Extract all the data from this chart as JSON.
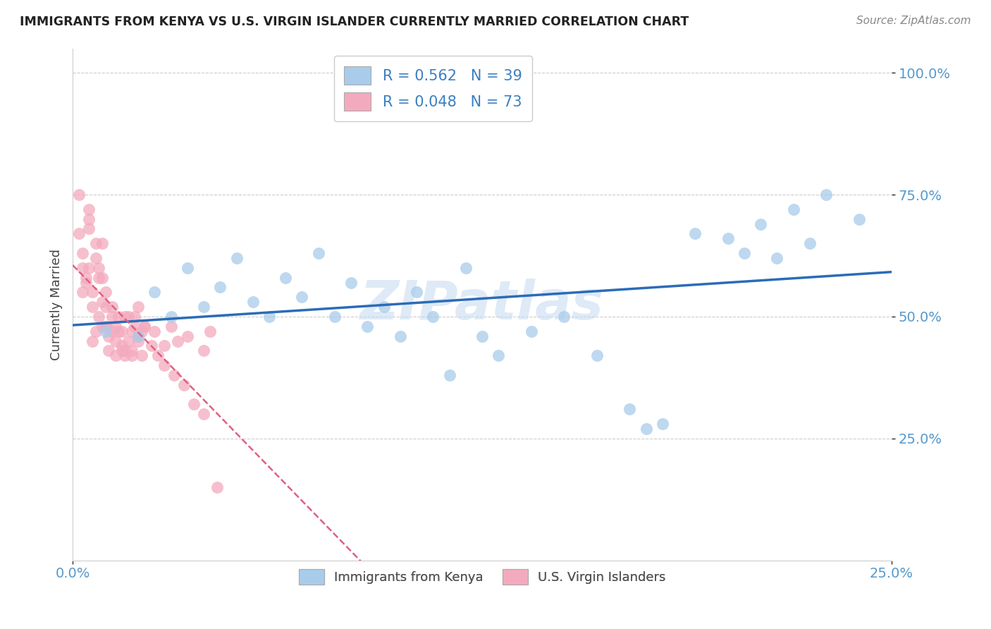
{
  "title": "IMMIGRANTS FROM KENYA VS U.S. VIRGIN ISLANDER CURRENTLY MARRIED CORRELATION CHART",
  "source": "Source: ZipAtlas.com",
  "ylabel": "Currently Married",
  "xlim": [
    0.0,
    0.25
  ],
  "ylim": [
    0.0,
    1.05
  ],
  "yticks": [
    0.25,
    0.5,
    0.75,
    1.0
  ],
  "ytick_labels": [
    "25.0%",
    "50.0%",
    "75.0%",
    "100.0%"
  ],
  "xticks": [
    0.0,
    0.25
  ],
  "xtick_labels": [
    "0.0%",
    "25.0%"
  ],
  "legend1_label": "R = 0.562   N = 39",
  "legend2_label": "R = 0.048   N = 73",
  "legend_bottom1": "Immigrants from Kenya",
  "legend_bottom2": "U.S. Virgin Islanders",
  "color_kenya": "#A8CCEA",
  "color_virgin": "#F4AABE",
  "line_color_kenya": "#2B6CB8",
  "line_color_virgin": "#E06080",
  "watermark": "ZIPatlas",
  "kenya_x": [
    0.01,
    0.02,
    0.025,
    0.03,
    0.035,
    0.04,
    0.045,
    0.05,
    0.055,
    0.06,
    0.065,
    0.07,
    0.075,
    0.08,
    0.085,
    0.09,
    0.095,
    0.1,
    0.105,
    0.11,
    0.115,
    0.12,
    0.125,
    0.13,
    0.14,
    0.15,
    0.16,
    0.17,
    0.175,
    0.18,
    0.19,
    0.2,
    0.205,
    0.21,
    0.215,
    0.22,
    0.225,
    0.23,
    0.24
  ],
  "kenya_y": [
    0.47,
    0.46,
    0.55,
    0.5,
    0.6,
    0.52,
    0.56,
    0.62,
    0.53,
    0.5,
    0.58,
    0.54,
    0.63,
    0.5,
    0.57,
    0.48,
    0.52,
    0.46,
    0.55,
    0.5,
    0.38,
    0.6,
    0.46,
    0.42,
    0.47,
    0.5,
    0.42,
    0.31,
    0.27,
    0.28,
    0.67,
    0.66,
    0.63,
    0.69,
    0.62,
    0.72,
    0.65,
    0.75,
    0.7
  ],
  "virgin_x": [
    0.002,
    0.003,
    0.003,
    0.004,
    0.005,
    0.005,
    0.006,
    0.006,
    0.007,
    0.007,
    0.008,
    0.008,
    0.009,
    0.009,
    0.01,
    0.01,
    0.01,
    0.011,
    0.012,
    0.012,
    0.013,
    0.013,
    0.014,
    0.015,
    0.015,
    0.016,
    0.016,
    0.017,
    0.018,
    0.018,
    0.019,
    0.02,
    0.02,
    0.021,
    0.022,
    0.025,
    0.028,
    0.03,
    0.032,
    0.035,
    0.04,
    0.042,
    0.002,
    0.003,
    0.004,
    0.005,
    0.005,
    0.006,
    0.007,
    0.008,
    0.009,
    0.009,
    0.01,
    0.011,
    0.012,
    0.013,
    0.014,
    0.015,
    0.016,
    0.017,
    0.018,
    0.019,
    0.02,
    0.021,
    0.022,
    0.024,
    0.026,
    0.028,
    0.031,
    0.034,
    0.037,
    0.04,
    0.044
  ],
  "virgin_y": [
    0.67,
    0.55,
    0.6,
    0.58,
    0.68,
    0.7,
    0.45,
    0.52,
    0.47,
    0.62,
    0.5,
    0.58,
    0.48,
    0.65,
    0.52,
    0.55,
    0.48,
    0.46,
    0.47,
    0.52,
    0.45,
    0.48,
    0.5,
    0.43,
    0.47,
    0.43,
    0.5,
    0.5,
    0.47,
    0.42,
    0.5,
    0.45,
    0.52,
    0.42,
    0.48,
    0.47,
    0.44,
    0.48,
    0.45,
    0.46,
    0.43,
    0.47,
    0.75,
    0.63,
    0.57,
    0.6,
    0.72,
    0.55,
    0.65,
    0.6,
    0.58,
    0.53,
    0.48,
    0.43,
    0.5,
    0.42,
    0.47,
    0.44,
    0.42,
    0.45,
    0.43,
    0.48,
    0.46,
    0.47,
    0.48,
    0.44,
    0.42,
    0.4,
    0.38,
    0.36,
    0.32,
    0.3,
    0.15
  ]
}
